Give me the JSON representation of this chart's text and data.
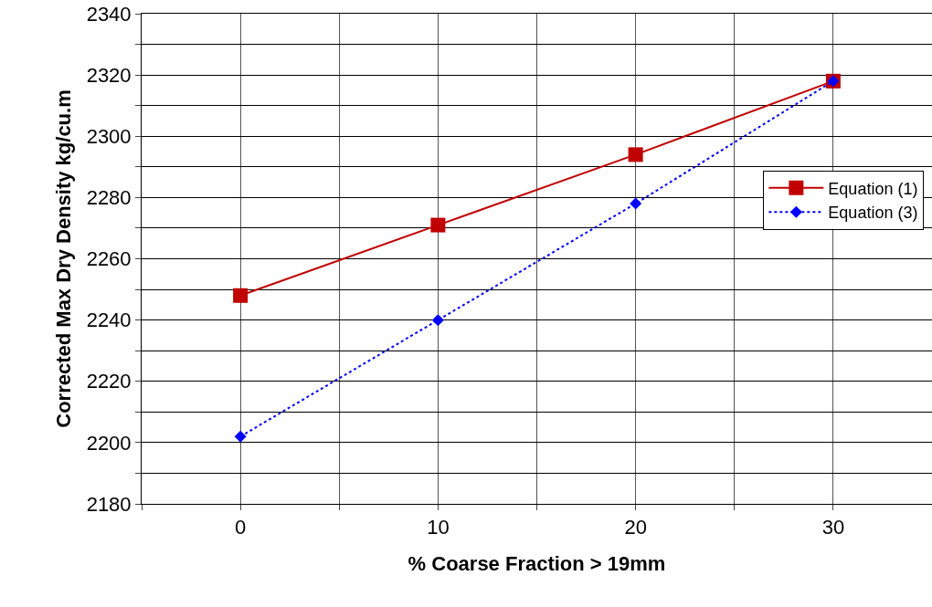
{
  "chart_data": {
    "type": "line",
    "xlabel": "% Coarse Fraction > 19mm",
    "ylabel": "Corrected Max Dry Density kg/cu.m",
    "x": [
      0,
      10,
      20,
      30
    ],
    "series": [
      {
        "name": "Equation (1)",
        "color": "#c00000",
        "values": [
          2248,
          2271,
          2294,
          2318
        ],
        "marker": "square",
        "line_style": "solid"
      },
      {
        "name": "Equation (3)",
        "color": "#0000ff",
        "values": [
          2202,
          2240,
          2278,
          2318
        ],
        "marker": "diamond",
        "line_style": "dotted"
      }
    ],
    "xlim": [
      -5,
      35
    ],
    "xticks": [
      {
        "value": -5,
        "label": null
      },
      0,
      {
        "value": 5,
        "label": null
      },
      10,
      {
        "value": 15,
        "label": null
      },
      20,
      {
        "value": 25,
        "label": null
      },
      30,
      {
        "value": 35,
        "label": null
      }
    ],
    "ylim": [
      2180,
      2340
    ],
    "yticks": [
      2180,
      {
        "value": 2190,
        "label": null
      },
      2200,
      {
        "value": 2210,
        "label": null
      },
      2220,
      {
        "value": 2230,
        "label": null
      },
      2240,
      {
        "value": 2250,
        "label": null
      },
      2260,
      {
        "value": 2270,
        "label": null
      },
      2280,
      {
        "value": 2290,
        "label": null
      },
      2300,
      {
        "value": 2310,
        "label": null
      },
      2320,
      {
        "value": 2330,
        "label": null
      },
      2340
    ],
    "grid": true,
    "legend": "right"
  }
}
